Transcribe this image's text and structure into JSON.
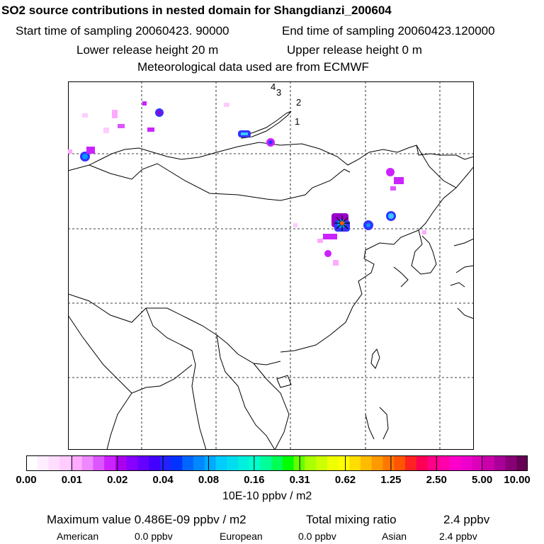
{
  "header": {
    "title": "SO2 source contributions in nested domain for Shangdianzi_200604",
    "start_time": "Start time of sampling 20060423. 90000",
    "end_time": "End time of sampling 20060423.120000",
    "lower_height": "Lower release height   20 m",
    "upper_height": "Upper release height    0 m",
    "met_source": "Meteorological data used are from ECMWF"
  },
  "map": {
    "trajectory_labels": [
      "4",
      "3",
      "2",
      "1"
    ],
    "receptor_marker": "asterisk-star",
    "plume_colors": [
      "#ff99ff",
      "#cc33ff",
      "#9900cc",
      "#3333ff",
      "#0099ff",
      "#33ccff"
    ]
  },
  "colorbar": {
    "colors": [
      "#ffffff",
      "#ffeeff",
      "#ffddff",
      "#ffccff",
      "#ffaaff",
      "#ee88ff",
      "#dd55ff",
      "#cc22ff",
      "#aa00ee",
      "#8800ff",
      "#6600ff",
      "#4400ff",
      "#2222ff",
      "#0033ff",
      "#0066ff",
      "#0088ff",
      "#00aaff",
      "#00ccff",
      "#00ddee",
      "#00eedd",
      "#00ffcc",
      "#00ff99",
      "#00ff55",
      "#00ff00",
      "#66ff00",
      "#aaff00",
      "#ccff00",
      "#eeff00",
      "#ffff00",
      "#ffdd00",
      "#ffbb00",
      "#ff9900",
      "#ff7700",
      "#ff5500",
      "#ff2222",
      "#ff0055",
      "#ff0088",
      "#ff00aa",
      "#ff00cc",
      "#ee00cc",
      "#dd00bb",
      "#cc00aa",
      "#aa0099",
      "#880077",
      "#660055"
    ],
    "ticks": [
      "0.00",
      "0.01",
      "0.02",
      "0.04",
      "0.08",
      "0.16",
      "0.31",
      "0.62",
      "1.25",
      "2.50",
      "5.00",
      "10.00"
    ],
    "units": "10E-10 ppbv / m2"
  },
  "summary": {
    "max_value": "Maximum value  0.486E-09 ppbv / m2",
    "total_label": "Total mixing ratio",
    "total_value": "2.4 ppbv",
    "american_label": "American",
    "american_value": "0.0 ppbv",
    "european_label": "European",
    "european_value": "0.0 ppbv",
    "asian_label": "Asian",
    "asian_value": "2.4 ppbv"
  }
}
